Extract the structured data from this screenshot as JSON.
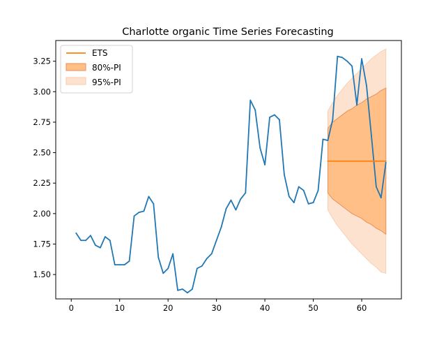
{
  "chart_data": {
    "type": "line",
    "title": "Charlotte organic Time Series Forecasting",
    "xlabel": "",
    "ylabel": "",
    "xlim": [
      -3.2,
      68.2
    ],
    "ylim": [
      1.3,
      3.42
    ],
    "xticks": [
      0,
      10,
      20,
      30,
      40,
      50,
      60
    ],
    "yticks": [
      1.5,
      1.75,
      2.0,
      2.25,
      2.5,
      2.75,
      3.0,
      3.25
    ],
    "grid": false,
    "legend": {
      "position": "top-left",
      "entries": [
        "ETS",
        "80%-PI",
        "95%-PI"
      ]
    },
    "colors": {
      "actual": "#1f77b4",
      "forecast": "#ff7f0e",
      "pi80_fill": "#ffbf86",
      "pi80_edge": "#e8915a",
      "pi95_fill": "#fde3cf"
    },
    "series": [
      {
        "role": "actual",
        "x": [
          1,
          2,
          3,
          4,
          5,
          6,
          7,
          8,
          9,
          10,
          11,
          12,
          13,
          14,
          15,
          16,
          17,
          18,
          19,
          20,
          21,
          22,
          23,
          24,
          25,
          26,
          27,
          28,
          29,
          30,
          31,
          32,
          33,
          34,
          35,
          36,
          37,
          38,
          39,
          40,
          41,
          42,
          43,
          44,
          45,
          46,
          47,
          48,
          49,
          50,
          51,
          52,
          53,
          54,
          55,
          56,
          57,
          58,
          59,
          60,
          61,
          62,
          63,
          64,
          65
        ],
        "values": [
          1.84,
          1.78,
          1.78,
          1.82,
          1.74,
          1.72,
          1.81,
          1.78,
          1.58,
          1.58,
          1.58,
          1.61,
          1.98,
          2.01,
          2.02,
          2.14,
          2.08,
          1.64,
          1.51,
          1.55,
          1.67,
          1.37,
          1.38,
          1.35,
          1.38,
          1.55,
          1.57,
          1.63,
          1.67,
          1.78,
          1.89,
          2.04,
          2.11,
          2.03,
          2.12,
          2.17,
          2.93,
          2.85,
          2.54,
          2.4,
          2.79,
          2.81,
          2.77,
          2.32,
          2.14,
          2.09,
          2.22,
          2.19,
          2.08,
          2.09,
          2.19,
          2.61,
          2.6,
          2.77,
          3.29,
          3.28,
          3.25,
          3.21,
          2.89,
          3.27,
          3.05,
          2.64,
          2.22,
          2.13,
          2.42
        ]
      },
      {
        "name": "ETS",
        "role": "forecast",
        "x": [
          53,
          54,
          55,
          56,
          57,
          58,
          59,
          60,
          61,
          62,
          63,
          64,
          65
        ],
        "values": [
          2.43,
          2.43,
          2.43,
          2.43,
          2.43,
          2.43,
          2.43,
          2.43,
          2.43,
          2.43,
          2.43,
          2.43,
          2.43
        ]
      }
    ],
    "intervals": [
      {
        "name": "80%-PI",
        "x": [
          53,
          54,
          55,
          56,
          57,
          58,
          59,
          60,
          61,
          62,
          63,
          64,
          65
        ],
        "lower": [
          2.17,
          2.12,
          2.09,
          2.06,
          2.03,
          2.0,
          1.98,
          1.96,
          1.93,
          1.91,
          1.88,
          1.86,
          1.83
        ],
        "upper": [
          2.7,
          2.75,
          2.78,
          2.81,
          2.84,
          2.86,
          2.89,
          2.91,
          2.94,
          2.96,
          2.98,
          3.01,
          3.03
        ]
      },
      {
        "name": "95%-PI",
        "x": [
          53,
          54,
          55,
          56,
          57,
          58,
          59,
          60,
          61,
          62,
          63,
          64,
          65
        ],
        "lower": [
          2.03,
          1.96,
          1.9,
          1.85,
          1.8,
          1.75,
          1.71,
          1.67,
          1.63,
          1.59,
          1.56,
          1.52,
          1.51
        ],
        "upper": [
          2.84,
          2.91,
          2.97,
          3.02,
          3.07,
          3.11,
          3.15,
          3.19,
          3.23,
          3.27,
          3.3,
          3.33,
          3.35
        ]
      }
    ]
  }
}
